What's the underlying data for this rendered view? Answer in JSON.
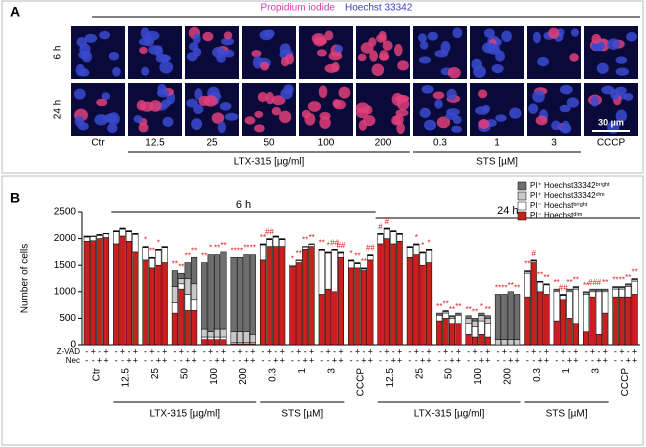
{
  "panel_a": {
    "letter": "A",
    "stains": [
      {
        "name": "Propidium iodide",
        "color": "#d43fb4"
      },
      {
        "name": "Hoechst 33342",
        "color": "#3b3fbf"
      }
    ],
    "rows": [
      "6 h",
      "24 h"
    ],
    "columns": [
      "Ctr",
      "12.5",
      "25",
      "50",
      "100",
      "200",
      "0.3",
      "1",
      "3",
      "CCCP"
    ],
    "groups": [
      "LTX-315 [µg/ml]",
      "STS [µM]"
    ],
    "scale_bar": "30 µm"
  },
  "chart_data": {
    "type": "bar",
    "stacked": true,
    "panel_label": "B",
    "ylabel": "Number of cells",
    "time_labels": [
      "6 h",
      "24 h"
    ],
    "categories": [
      "Ctr",
      "12.5",
      "25",
      "50",
      "100",
      "200",
      "0.3",
      "1",
      "3",
      "CCCP",
      "12.5",
      "25",
      "50",
      "100",
      "200",
      "0.3",
      "1",
      "3",
      "CCCP"
    ],
    "groups": [
      "LTX-315 [µg/ml]",
      "STS [µM]",
      "LTX-315 [µg/ml]",
      "STS [µM]"
    ],
    "treatment_rows": [
      {
        "name": "Z-VAD",
        "signs": [
          "-",
          "+",
          "-",
          "+"
        ]
      },
      {
        "name": "Nec",
        "signs": [
          "-",
          "-",
          "+",
          "+"
        ]
      }
    ],
    "ylim": [
      0,
      2500
    ],
    "yticks": [
      0,
      500,
      1000,
      1500,
      2000,
      2500
    ],
    "series": [
      {
        "name": "PI⁻ Hoechstᵈⁱᵐ",
        "color": "#c8201e",
        "values": [
          [
            1950,
            1960,
            2000,
            2020
          ],
          [
            1900,
            2050,
            1950,
            1750
          ],
          [
            1600,
            1450,
            1500,
            1550
          ],
          [
            600,
            1050,
            650,
            650
          ],
          [
            100,
            100,
            100,
            100
          ],
          [
            20,
            20,
            20,
            20
          ],
          [
            1600,
            1850,
            1850,
            1850
          ],
          [
            1480,
            1550,
            1800,
            1850
          ],
          [
            950,
            1050,
            1000,
            1650
          ],
          [
            1450,
            1450,
            1400,
            1600
          ],
          [
            1900,
            2000,
            1900,
            1950
          ],
          [
            1650,
            1700,
            1500,
            1550
          ],
          [
            450,
            500,
            400,
            400
          ],
          [
            200,
            150,
            200,
            150
          ],
          [
            0,
            0,
            0,
            0
          ],
          [
            900,
            1550,
            1000,
            950
          ],
          [
            450,
            850,
            500,
            400
          ],
          [
            250,
            900,
            200,
            600
          ],
          [
            900,
            900,
            900,
            950
          ]
        ]
      },
      {
        "name": "PI⁻ Hoechstᵇʳⁱᵍʰᵗ",
        "color": "#ffffff",
        "values": [
          [
            80,
            80,
            60,
            70
          ],
          [
            230,
            130,
            180,
            330
          ],
          [
            230,
            180,
            280,
            280
          ],
          [
            200,
            100,
            300,
            200
          ],
          [
            50,
            50,
            50,
            50
          ],
          [
            30,
            30,
            30,
            30
          ],
          [
            280,
            130,
            180,
            130
          ],
          [
            20,
            40,
            40,
            40
          ],
          [
            830,
            680,
            780,
            80
          ],
          [
            130,
            80,
            30,
            80
          ],
          [
            180,
            180,
            230,
            130
          ],
          [
            180,
            180,
            230,
            230
          ],
          [
            100,
            100,
            100,
            150
          ],
          [
            200,
            200,
            250,
            250
          ],
          [
            0,
            0,
            0,
            0
          ],
          [
            450,
            30,
            180,
            180
          ],
          [
            550,
            80,
            500,
            650
          ],
          [
            700,
            100,
            800,
            400
          ],
          [
            150,
            150,
            200,
            250
          ]
        ]
      },
      {
        "name": "PI⁺ Hoechst33342ᵈⁱᵐ",
        "color": "#c8c8c8",
        "values": [
          [
            10,
            5,
            10,
            5
          ],
          [
            10,
            10,
            10,
            10
          ],
          [
            10,
            10,
            10,
            10
          ],
          [
            300,
            100,
            300,
            300
          ],
          [
            150,
            100,
            150,
            150
          ],
          [
            200,
            200,
            200,
            150
          ],
          [
            10,
            10,
            10,
            10
          ],
          [
            0,
            5,
            5,
            5
          ],
          [
            10,
            10,
            10,
            10
          ],
          [
            10,
            10,
            10,
            10
          ],
          [
            10,
            10,
            10,
            10
          ],
          [
            10,
            10,
            10,
            10
          ],
          [
            30,
            30,
            30,
            30
          ],
          [
            100,
            100,
            100,
            100
          ],
          [
            100,
            100,
            100,
            100
          ],
          [
            30,
            10,
            10,
            10
          ],
          [
            30,
            10,
            30,
            30
          ],
          [
            30,
            30,
            30,
            30
          ],
          [
            30,
            30,
            30,
            30
          ]
        ]
      },
      {
        "name": "PI⁺ Hoechst33342ᵇʳⁱᵍʰᵗ",
        "color": "#6e6e6e",
        "values": [
          [
            10,
            5,
            10,
            5
          ],
          [
            10,
            10,
            10,
            10
          ],
          [
            10,
            10,
            10,
            10
          ],
          [
            300,
            100,
            300,
            500
          ],
          [
            1250,
            1450,
            1400,
            1450
          ],
          [
            1400,
            1400,
            1450,
            1500
          ],
          [
            10,
            10,
            10,
            10
          ],
          [
            0,
            5,
            5,
            5
          ],
          [
            10,
            10,
            10,
            10
          ],
          [
            10,
            10,
            10,
            10
          ],
          [
            10,
            10,
            10,
            10
          ],
          [
            10,
            10,
            10,
            10
          ],
          [
            20,
            20,
            20,
            20
          ],
          [
            50,
            50,
            50,
            50
          ],
          [
            850,
            850,
            900,
            850
          ],
          [
            20,
            10,
            10,
            10
          ],
          [
            20,
            10,
            20,
            20
          ],
          [
            20,
            20,
            20,
            20
          ],
          [
            20,
            20,
            20,
            20
          ]
        ]
      }
    ],
    "annotations": [
      [
        null,
        null,
        null,
        null
      ],
      [
        null,
        null,
        null,
        null
      ],
      [
        "*",
        "**",
        "*",
        null
      ],
      [
        "**",
        "**",
        "**",
        "**"
      ],
      [
        "**",
        "*",
        "**",
        "**"
      ],
      [
        "**",
        "**",
        "**",
        "**"
      ],
      [
        "**",
        "##",
        null,
        null
      ],
      [
        "*",
        "**",
        "**",
        "**"
      ],
      [
        "**",
        "*",
        "##",
        "##"
      ],
      [
        "*",
        "**",
        "**",
        "##"
      ],
      [
        "#",
        "#",
        null,
        null
      ],
      [
        null,
        "*",
        "*",
        "*"
      ],
      [
        "**",
        "**",
        "**",
        "**"
      ],
      [
        "**",
        "**",
        "*",
        "**"
      ],
      [
        "**",
        "**",
        "**",
        "**"
      ],
      [
        "**",
        "#",
        "**",
        "**"
      ],
      [
        "**",
        "##",
        "**",
        "**"
      ],
      [
        "**",
        "##",
        "#",
        "**"
      ],
      [
        "**",
        "**",
        "**",
        "**"
      ]
    ]
  }
}
